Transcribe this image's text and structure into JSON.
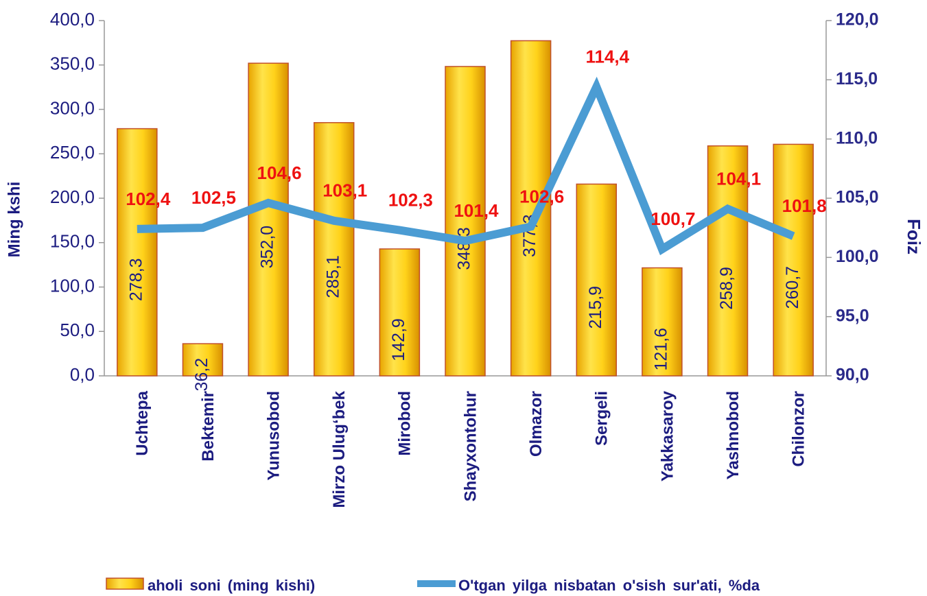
{
  "chart_data": {
    "type": "bar",
    "categories": [
      "Uchtepa",
      "Bektemir",
      "Yunusobod",
      "Mirzo Ulug‘bek",
      "Mirobod",
      "Shayxontohur",
      "Olmazor",
      "Sergeli",
      "Yakkasaroy",
      "Yashnobod",
      "Chilonzor"
    ],
    "series": [
      {
        "name": "aholi soni (ming kishi)",
        "color": "#f5c400",
        "values": [
          278.3,
          36.2,
          352.0,
          285.1,
          142.9,
          348.3,
          377.3,
          215.9,
          121.6,
          258.9,
          260.7
        ],
        "value_labels": [
          "278,3",
          "36,2",
          "352,0",
          "285,1",
          "142,9",
          "348,3",
          "377,3",
          "215,9",
          "121,6",
          "258,9",
          "260,7"
        ]
      },
      {
        "name": "O'tgan yilga nisbatan o'sish sur'ati, %da",
        "color": "#4b9cd3",
        "type": "line",
        "axis": "y2",
        "values": [
          102.4,
          102.5,
          104.6,
          103.1,
          102.3,
          101.4,
          102.6,
          114.4,
          100.7,
          104.1,
          101.8
        ],
        "value_labels": [
          "102,4",
          "102,5",
          "104,6",
          "103,1",
          "102,3",
          "101,4",
          "102,6",
          "114,4",
          "100,7",
          "104,1",
          "101,8"
        ]
      }
    ],
    "ylabel": "Ming kshi",
    "y2label": "Foiz",
    "ylim": [
      0,
      400
    ],
    "yticks": [
      {
        "value": 0,
        "label": "0,0"
      },
      {
        "value": 50,
        "label": "50,0"
      },
      {
        "value": 100,
        "label": "100,0"
      },
      {
        "value": 150,
        "label": "150,0"
      },
      {
        "value": 200,
        "label": "200,0"
      },
      {
        "value": 250,
        "label": "250,0"
      },
      {
        "value": 300,
        "label": "300,0"
      },
      {
        "value": 350,
        "label": "350,0"
      },
      {
        "value": 400,
        "label": "400,0"
      }
    ],
    "y2lim": [
      90,
      120
    ],
    "y2ticks": [
      {
        "value": 90,
        "label": "90,0"
      },
      {
        "value": 95,
        "label": "95,0"
      },
      {
        "value": 100,
        "label": "100,0"
      },
      {
        "value": 105,
        "label": "105,0"
      },
      {
        "value": 110,
        "label": "110,0"
      },
      {
        "value": 115,
        "label": "115,0"
      },
      {
        "value": 120,
        "label": "120,0"
      }
    ],
    "legend": "bottom"
  }
}
